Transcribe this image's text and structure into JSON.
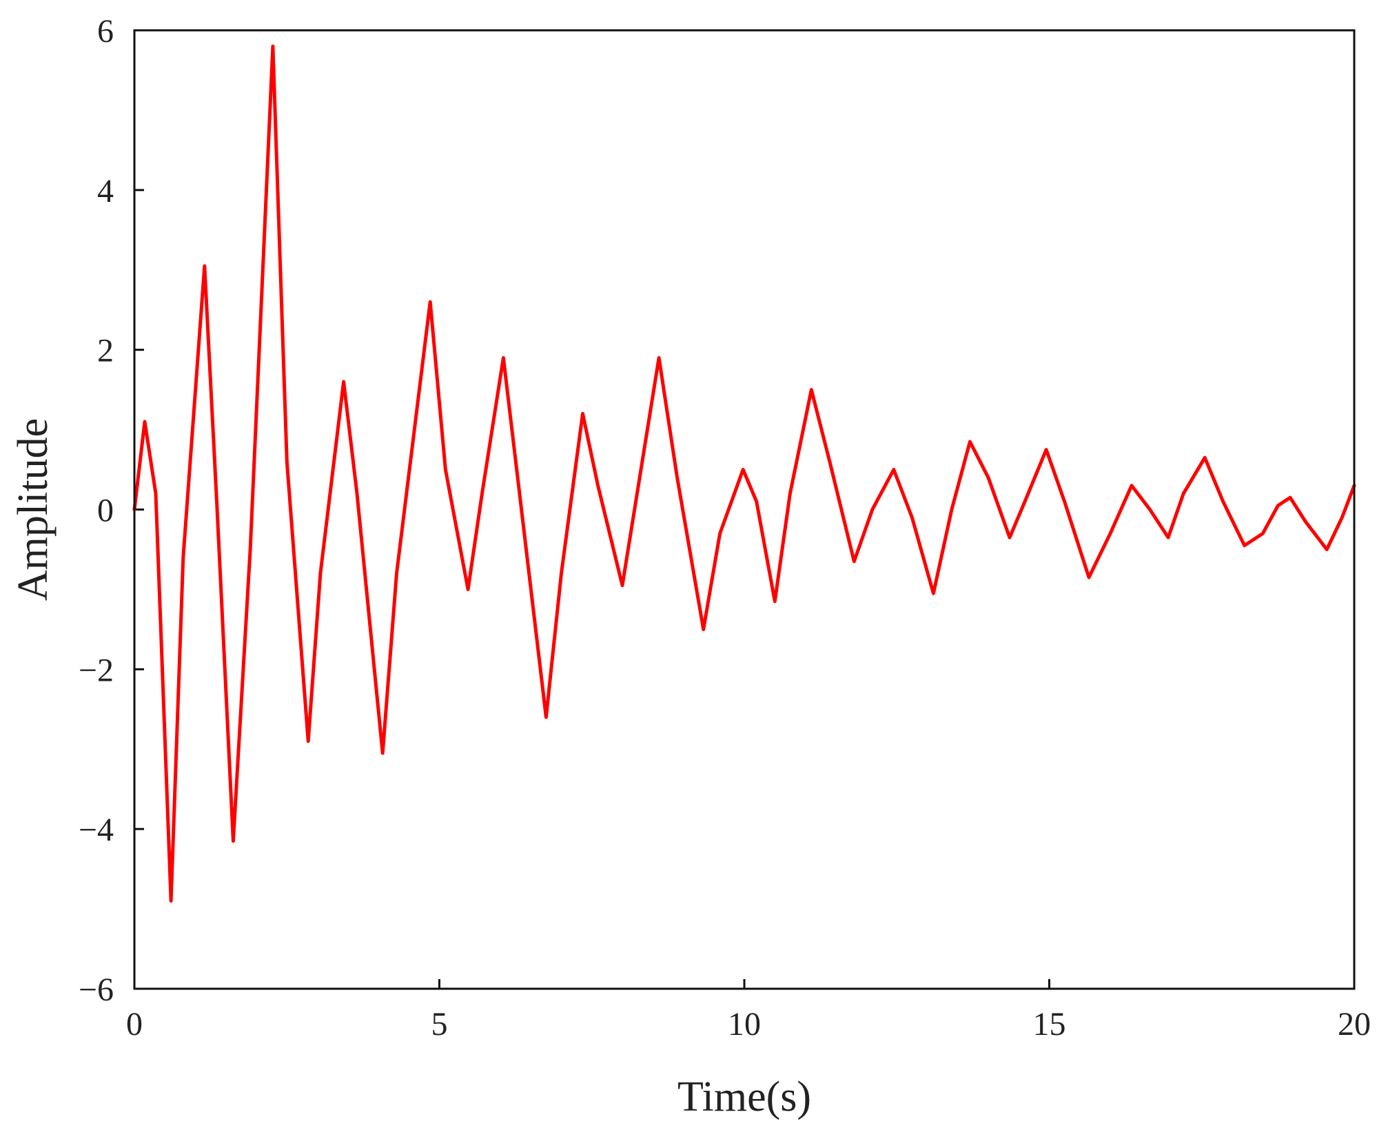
{
  "chart_data": {
    "type": "line",
    "title": "",
    "xlabel": "Time(s)",
    "ylabel": "Amplitude",
    "xlim": [
      0,
      20
    ],
    "ylim": [
      -6,
      6
    ],
    "xticks": [
      0,
      5,
      10,
      15,
      20
    ],
    "xtick_labels": [
      "0",
      "5",
      "10",
      "15",
      "20"
    ],
    "yticks": [
      -6,
      -4,
      -2,
      0,
      2,
      4,
      6
    ],
    "ytick_labels": [
      "−6",
      "−4",
      "−2",
      "0",
      "2",
      "4",
      "6"
    ],
    "grid": false,
    "legend": "none",
    "series": [
      {
        "color": "#ff0000",
        "points": [
          [
            0.0,
            0.0
          ],
          [
            0.17,
            1.1
          ],
          [
            0.35,
            0.2
          ],
          [
            0.6,
            -4.9
          ],
          [
            0.8,
            -0.6
          ],
          [
            1.15,
            3.05
          ],
          [
            1.35,
            0.1
          ],
          [
            1.62,
            -4.15
          ],
          [
            1.9,
            -0.5
          ],
          [
            2.27,
            5.8
          ],
          [
            2.5,
            0.6
          ],
          [
            2.85,
            -2.9
          ],
          [
            3.05,
            -0.8
          ],
          [
            3.43,
            1.6
          ],
          [
            3.65,
            0.2
          ],
          [
            4.07,
            -3.05
          ],
          [
            4.3,
            -0.8
          ],
          [
            4.85,
            2.6
          ],
          [
            5.1,
            0.5
          ],
          [
            5.47,
            -1.0
          ],
          [
            5.7,
            0.2
          ],
          [
            6.05,
            1.9
          ],
          [
            6.3,
            0.3
          ],
          [
            6.75,
            -2.6
          ],
          [
            7.0,
            -0.8
          ],
          [
            7.35,
            1.2
          ],
          [
            7.6,
            0.3
          ],
          [
            8.0,
            -0.95
          ],
          [
            8.2,
            0.0
          ],
          [
            8.6,
            1.9
          ],
          [
            8.9,
            0.4
          ],
          [
            9.33,
            -1.5
          ],
          [
            9.6,
            -0.3
          ],
          [
            9.98,
            0.5
          ],
          [
            10.2,
            0.1
          ],
          [
            10.5,
            -1.15
          ],
          [
            10.75,
            0.2
          ],
          [
            11.1,
            1.5
          ],
          [
            11.4,
            0.6
          ],
          [
            11.8,
            -0.65
          ],
          [
            12.1,
            0.0
          ],
          [
            12.45,
            0.5
          ],
          [
            12.75,
            -0.1
          ],
          [
            13.1,
            -1.05
          ],
          [
            13.4,
            0.0
          ],
          [
            13.7,
            0.85
          ],
          [
            14.0,
            0.4
          ],
          [
            14.35,
            -0.35
          ],
          [
            14.6,
            0.1
          ],
          [
            14.95,
            0.75
          ],
          [
            15.25,
            0.1
          ],
          [
            15.65,
            -0.85
          ],
          [
            16.0,
            -0.3
          ],
          [
            16.35,
            0.3
          ],
          [
            16.65,
            0.0
          ],
          [
            16.95,
            -0.35
          ],
          [
            17.2,
            0.2
          ],
          [
            17.55,
            0.65
          ],
          [
            17.85,
            0.1
          ],
          [
            18.2,
            -0.45
          ],
          [
            18.5,
            -0.3
          ],
          [
            18.75,
            0.05
          ],
          [
            18.95,
            0.15
          ],
          [
            19.2,
            -0.15
          ],
          [
            19.55,
            -0.5
          ],
          [
            19.8,
            -0.1
          ],
          [
            20.0,
            0.3
          ]
        ]
      }
    ]
  }
}
